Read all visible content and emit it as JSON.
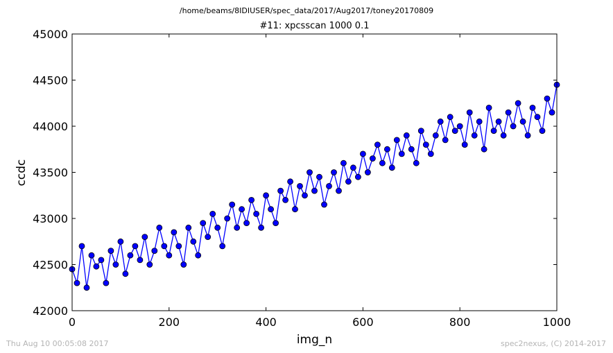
{
  "header": {
    "file_path": "/home/beams/8IDIUSER/spec_data/2017/Aug2017/toney20170809"
  },
  "footer": {
    "timestamp": "Thu Aug 10 00:05:08 2017",
    "credit": "spec2nexus, (C) 2014-2017"
  },
  "colors": {
    "series": "#0000ff",
    "axes": "#000000",
    "footer_text": "#b4b4b4"
  },
  "chart_data": {
    "type": "line",
    "title": "#11: xpcsscan 1000 0.1",
    "xlabel": "img_n",
    "ylabel": "ccdc",
    "xlim": [
      0,
      1000
    ],
    "ylim": [
      42000,
      45000
    ],
    "xticks": [
      0,
      200,
      400,
      600,
      800,
      1000
    ],
    "yticks": [
      42000,
      42500,
      43000,
      43500,
      44000,
      44500,
      45000
    ],
    "grid": false,
    "legend": "none",
    "marker": "circle",
    "series": [
      {
        "x": [
          0,
          10,
          20,
          30,
          40,
          50,
          60,
          70,
          80,
          90,
          100,
          110,
          120,
          130,
          140,
          150,
          160,
          170,
          180,
          190,
          200,
          210,
          220,
          230,
          240,
          250,
          260,
          270,
          280,
          290,
          300,
          310,
          320,
          330,
          340,
          350,
          360,
          370,
          380,
          390,
          400,
          410,
          420,
          430,
          440,
          450,
          460,
          470,
          480,
          490,
          500,
          510,
          520,
          530,
          540,
          550,
          560,
          570,
          580,
          590,
          600,
          610,
          620,
          630,
          640,
          650,
          660,
          670,
          680,
          690,
          700,
          710,
          720,
          730,
          740,
          750,
          760,
          770,
          780,
          790,
          800,
          810,
          820,
          830,
          840,
          850,
          860,
          870,
          880,
          890,
          900,
          910,
          920,
          930,
          940,
          950,
          960,
          970,
          980,
          990,
          1000
        ],
        "y": [
          42450,
          42300,
          42700,
          42250,
          42600,
          42480,
          42550,
          42300,
          42650,
          42500,
          42750,
          42400,
          42600,
          42700,
          42550,
          42800,
          42500,
          42650,
          42900,
          42700,
          42600,
          42850,
          42700,
          42500,
          42900,
          42750,
          42600,
          42950,
          42800,
          43050,
          42900,
          42700,
          43000,
          43150,
          42900,
          43100,
          42950,
          43200,
          43050,
          42900,
          43250,
          43100,
          42950,
          43300,
          43200,
          43400,
          43100,
          43350,
          43250,
          43500,
          43300,
          43450,
          43150,
          43350,
          43500,
          43300,
          43600,
          43400,
          43550,
          43450,
          43700,
          43500,
          43650,
          43800,
          43600,
          43750,
          43550,
          43850,
          43700,
          43900,
          43750,
          43600,
          43950,
          43800,
          43700,
          43900,
          44050,
          43850,
          44100,
          43950,
          44000,
          43800,
          44150,
          43900,
          44050,
          43750,
          44200,
          43950,
          44050,
          43900,
          44150,
          44000,
          44250,
          44050,
          43900,
          44200,
          44100,
          43950,
          44300,
          44150,
          44450
        ]
      }
    ]
  }
}
